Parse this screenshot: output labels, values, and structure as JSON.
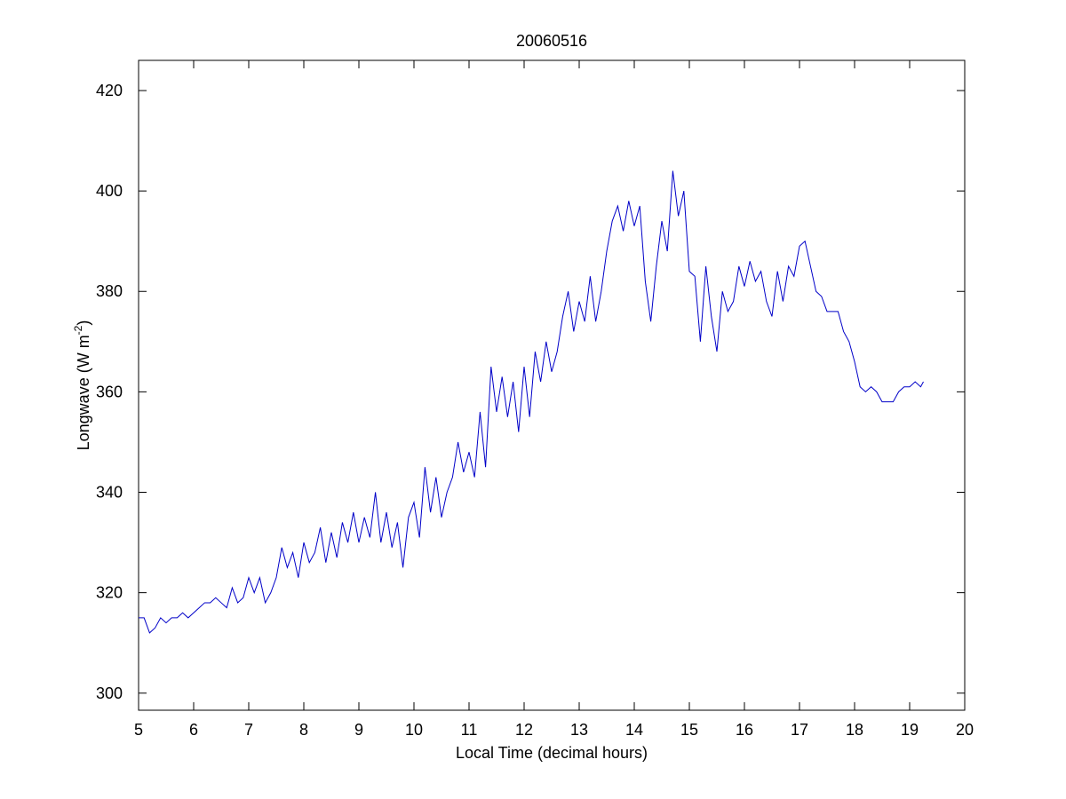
{
  "chart_data": {
    "type": "line",
    "title": "20060516",
    "x_label": "Local Time (decimal hours)",
    "y_label_parts": [
      "Longwave (W m",
      "-2",
      ")"
    ],
    "xlim": [
      5,
      20
    ],
    "ylim": [
      296.6,
      426
    ],
    "xticks": [
      5,
      6,
      7,
      8,
      9,
      10,
      11,
      12,
      13,
      14,
      15,
      16,
      17,
      18,
      19,
      20
    ],
    "yticks": [
      300,
      320,
      340,
      360,
      380,
      400,
      420
    ],
    "grid": false,
    "x": [
      5.0,
      5.1,
      5.2,
      5.3,
      5.4,
      5.5,
      5.6,
      5.7,
      5.8,
      5.9,
      6.0,
      6.1,
      6.2,
      6.3,
      6.4,
      6.5,
      6.6,
      6.7,
      6.8,
      6.9,
      7.0,
      7.1,
      7.2,
      7.3,
      7.4,
      7.5,
      7.6,
      7.7,
      7.8,
      7.9,
      8.0,
      8.1,
      8.2,
      8.3,
      8.4,
      8.5,
      8.6,
      8.7,
      8.8,
      8.9,
      9.0,
      9.1,
      9.2,
      9.3,
      9.4,
      9.5,
      9.6,
      9.7,
      9.8,
      9.9,
      10.0,
      10.1,
      10.2,
      10.3,
      10.4,
      10.5,
      10.6,
      10.7,
      10.8,
      10.9,
      11.0,
      11.1,
      11.2,
      11.3,
      11.4,
      11.5,
      11.6,
      11.7,
      11.8,
      11.9,
      12.0,
      12.1,
      12.2,
      12.3,
      12.4,
      12.5,
      12.6,
      12.7,
      12.8,
      12.9,
      13.0,
      13.1,
      13.2,
      13.3,
      13.4,
      13.5,
      13.6,
      13.7,
      13.8,
      13.9,
      14.0,
      14.1,
      14.2,
      14.3,
      14.4,
      14.5,
      14.6,
      14.7,
      14.8,
      14.9,
      15.0,
      15.1,
      15.2,
      15.3,
      15.4,
      15.5,
      15.6,
      15.7,
      15.8,
      15.9,
      16.0,
      16.1,
      16.2,
      16.3,
      16.4,
      16.5,
      16.6,
      16.7,
      16.8,
      16.9,
      17.0,
      17.1,
      17.2,
      17.3,
      17.4,
      17.5,
      17.6,
      17.7,
      17.8,
      17.9,
      18.0,
      18.1,
      18.2,
      18.3,
      18.4,
      18.5,
      18.6,
      18.7,
      18.8,
      18.9,
      19.0,
      19.1,
      19.2,
      19.25
    ],
    "series": [
      {
        "name": "Longwave",
        "color": "#0000c8",
        "values": [
          315,
          315,
          312,
          313,
          315,
          314,
          315,
          315,
          316,
          315,
          316,
          317,
          318,
          318,
          319,
          318,
          317,
          321,
          318,
          319,
          323,
          320,
          323,
          318,
          320,
          323,
          329,
          325,
          328,
          323,
          330,
          326,
          328,
          333,
          326,
          332,
          327,
          334,
          330,
          336,
          330,
          335,
          331,
          340,
          330,
          336,
          329,
          334,
          325,
          335,
          338,
          331,
          345,
          336,
          343,
          335,
          340,
          343,
          350,
          344,
          348,
          343,
          356,
          345,
          365,
          356,
          363,
          355,
          362,
          352,
          365,
          355,
          368,
          362,
          370,
          364,
          368,
          375,
          380,
          372,
          378,
          374,
          383,
          374,
          380,
          388,
          394,
          397,
          392,
          398,
          393,
          397,
          382,
          374,
          385,
          394,
          388,
          404,
          395,
          400,
          384,
          383,
          370,
          385,
          375,
          368,
          380,
          376,
          378,
          385,
          381,
          386,
          382,
          384,
          378,
          375,
          384,
          378,
          385,
          383,
          389,
          390,
          385,
          380,
          379,
          376,
          376,
          376,
          372,
          370,
          366,
          361,
          360,
          361,
          360,
          358,
          358,
          358,
          360,
          361,
          361,
          362,
          361,
          362
        ]
      }
    ]
  }
}
